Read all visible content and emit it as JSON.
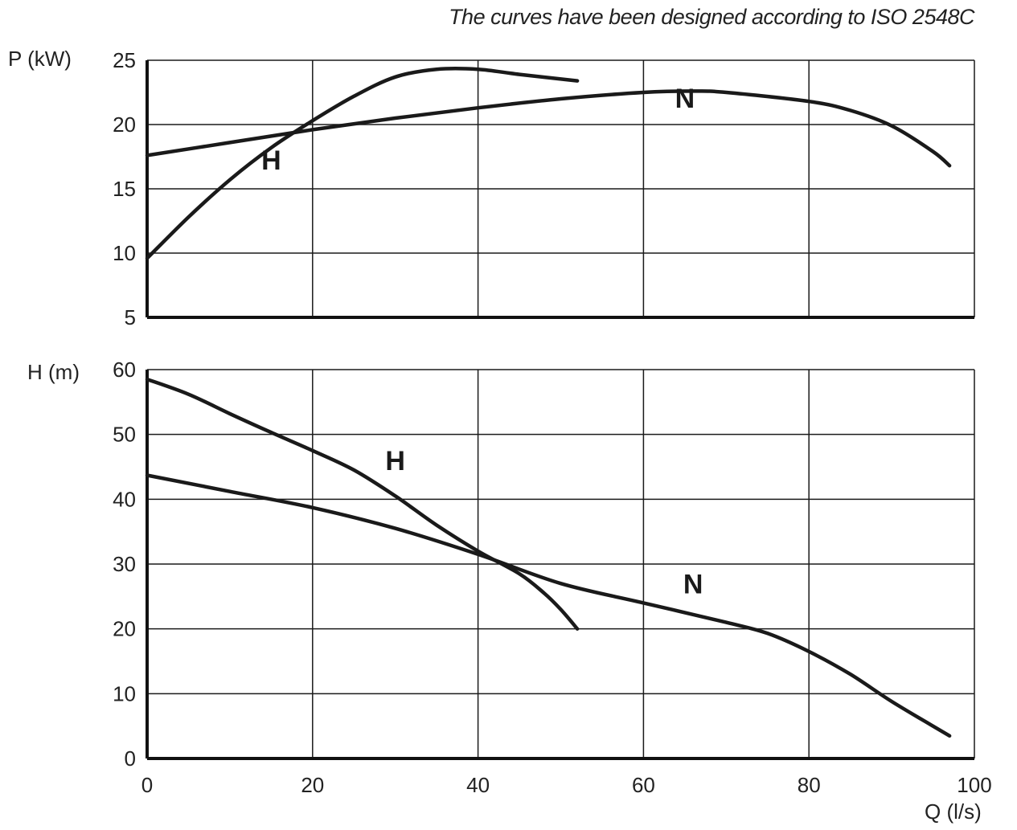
{
  "chart_note": "The curves have been designed according to ISO 2548C",
  "chart_data": [
    {
      "type": "line",
      "ylabel": "P (kW)",
      "xlim": [
        0,
        100
      ],
      "ylim": [
        5,
        25
      ],
      "x_ticks": [
        0,
        20,
        40,
        60,
        80,
        100
      ],
      "y_ticks": [
        5,
        10,
        15,
        20,
        25
      ],
      "grid": true,
      "series": [
        {
          "name": "H",
          "x": [
            0,
            5,
            10,
            15,
            20,
            25,
            30,
            35,
            40,
            45,
            52
          ],
          "y": [
            9.6,
            12.8,
            15.7,
            18.2,
            20.3,
            22.2,
            23.7,
            24.3,
            24.3,
            23.9,
            23.4
          ]
        },
        {
          "name": "N",
          "x": [
            0,
            10,
            20,
            30,
            40,
            50,
            60,
            66,
            70,
            80,
            85,
            90,
            95,
            97
          ],
          "y": [
            17.6,
            18.6,
            19.6,
            20.5,
            21.3,
            22.0,
            22.5,
            22.6,
            22.5,
            21.8,
            21.1,
            19.9,
            17.9,
            16.8
          ]
        }
      ],
      "annotations": [
        {
          "text": "H",
          "x": 15,
          "y": 16.5
        },
        {
          "text": "N",
          "x": 65,
          "y": 21.3
        }
      ]
    },
    {
      "type": "line",
      "ylabel": "H (m)",
      "xlabel": "Q (l/s)",
      "xlim": [
        0,
        100
      ],
      "ylim": [
        0,
        60
      ],
      "x_ticks": [
        0,
        20,
        40,
        60,
        80,
        100
      ],
      "y_ticks": [
        0,
        10,
        20,
        30,
        40,
        50,
        60
      ],
      "grid": true,
      "series": [
        {
          "name": "H",
          "x": [
            0,
            5,
            10,
            15,
            20,
            25,
            30,
            35,
            40,
            45,
            48,
            50,
            52
          ],
          "y": [
            58.5,
            56.2,
            53.2,
            50.3,
            47.5,
            44.5,
            40.5,
            36.0,
            32.0,
            28.5,
            25.5,
            23.0,
            20.0
          ]
        },
        {
          "name": "N",
          "x": [
            0,
            10,
            20,
            30,
            40,
            50,
            60,
            70,
            75,
            80,
            85,
            90,
            95,
            97
          ],
          "y": [
            43.7,
            41.2,
            38.7,
            35.5,
            31.5,
            27.0,
            24.0,
            21.0,
            19.3,
            16.5,
            13.0,
            8.8,
            5.0,
            3.5
          ]
        }
      ],
      "annotations": [
        {
          "text": "H",
          "x": 30,
          "y": 44.5
        },
        {
          "text": "N",
          "x": 66,
          "y": 25.5
        }
      ]
    }
  ]
}
